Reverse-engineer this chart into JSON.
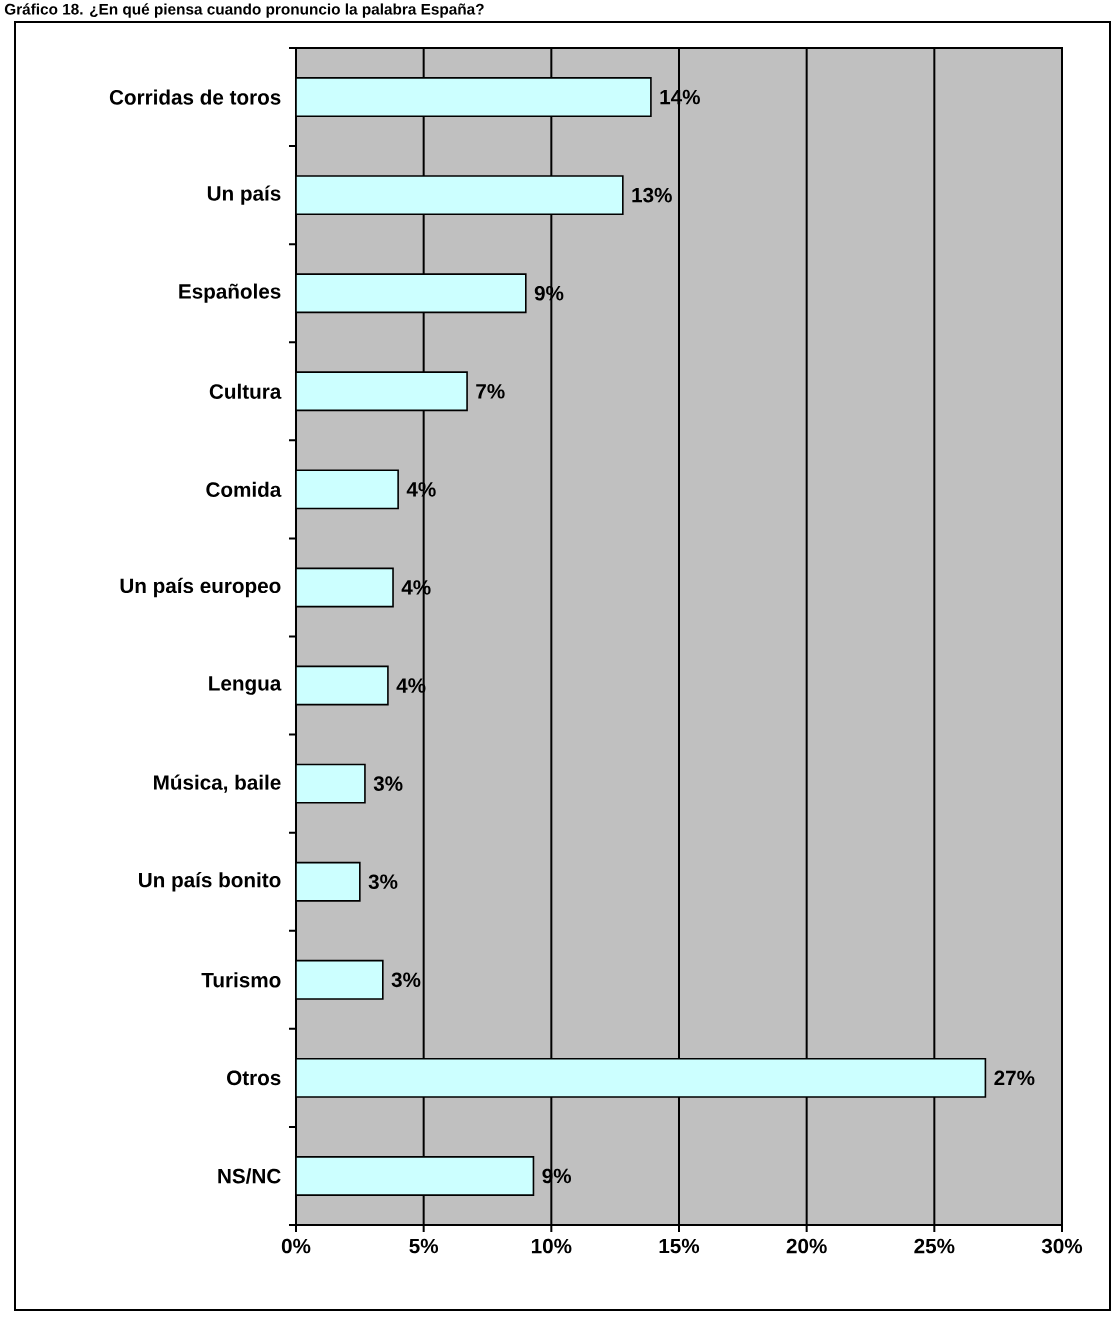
{
  "chart_data": {
    "type": "bar",
    "orientation": "horizontal",
    "title": "Gráfico 18. ¿En qué piensa cuando pronuncio la palabra España?",
    "categories": [
      "Corridas de toros",
      "Un país",
      "Españoles",
      "Cultura",
      "Comida",
      "Un país europeo",
      "Lengua",
      "Música, baile",
      "Un país bonito",
      "Turismo",
      "Otros",
      "NS/NC"
    ],
    "values": [
      13.9,
      12.8,
      9.0,
      6.7,
      4.0,
      3.8,
      3.6,
      2.7,
      2.5,
      3.4,
      27.0,
      9.3
    ],
    "value_labels": [
      "14%",
      "13%",
      "9%",
      "7%",
      "4%",
      "4%",
      "4%",
      "3%",
      "3%",
      "3%",
      "27%",
      "9%"
    ],
    "color": "#ccffff",
    "xlim": [
      0,
      30
    ],
    "xticks": [
      {
        "value": 0,
        "label": "0%"
      },
      {
        "value": 5,
        "label": "5%"
      },
      {
        "value": 10,
        "label": "10%"
      },
      {
        "value": 15,
        "label": "15%"
      },
      {
        "value": 20,
        "label": "20%"
      },
      {
        "value": 25,
        "label": "25%"
      },
      {
        "value": 30,
        "label": "30%"
      }
    ],
    "grid": "x"
  }
}
